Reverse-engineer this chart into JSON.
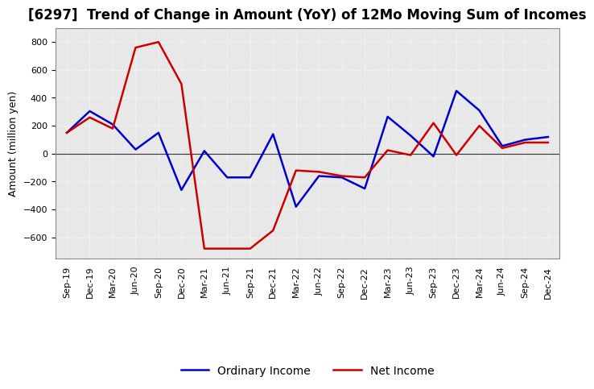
{
  "title": "[6297]  Trend of Change in Amount (YoY) of 12Mo Moving Sum of Incomes",
  "ylabel": "Amount (million yen)",
  "x_labels": [
    "Sep-19",
    "Dec-19",
    "Mar-20",
    "Jun-20",
    "Sep-20",
    "Dec-20",
    "Mar-21",
    "Jun-21",
    "Sep-21",
    "Dec-21",
    "Mar-22",
    "Jun-22",
    "Sep-22",
    "Dec-22",
    "Mar-23",
    "Jun-23",
    "Sep-23",
    "Dec-23",
    "Mar-24",
    "Jun-24",
    "Sep-24",
    "Dec-24"
  ],
  "ordinary_income": [
    150,
    305,
    210,
    30,
    150,
    -260,
    20,
    -170,
    -170,
    140,
    -380,
    -160,
    -170,
    -250,
    265,
    130,
    -20,
    450,
    310,
    55,
    100,
    120
  ],
  "net_income": [
    150,
    260,
    180,
    760,
    800,
    500,
    -680,
    -680,
    -680,
    -550,
    -120,
    -130,
    -160,
    -170,
    25,
    -10,
    220,
    -10,
    200,
    40,
    80,
    80
  ],
  "ordinary_income_color": "#0000cc",
  "net_income_color": "#cc0000",
  "background_color": "#ffffff",
  "grid_color": "#b0b0b0",
  "ylim": [
    -750,
    900
  ],
  "yticks": [
    -600,
    -400,
    -200,
    0,
    200,
    400,
    600,
    800
  ],
  "line_width": 1.8,
  "title_fontsize": 12,
  "label_fontsize": 9,
  "tick_fontsize": 8,
  "legend_fontsize": 10
}
